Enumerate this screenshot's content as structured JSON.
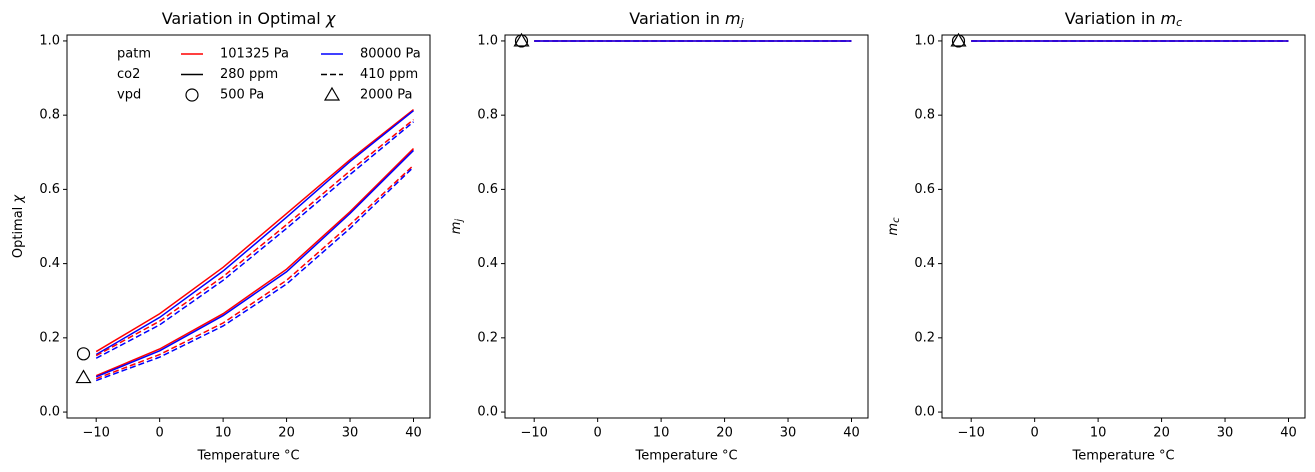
{
  "chart_data": [
    {
      "type": "line",
      "title": "Variation in Optimal",
      "title_symbol": "χ",
      "xlabel": "Temperature °C",
      "ylabel": "Optimal",
      "ylabel_symbol": "χ",
      "x": [
        -10,
        0,
        10,
        20,
        30,
        40
      ],
      "series": [
        {
          "color": "#ff0000",
          "dash": "solid",
          "values": [
            0.163,
            0.265,
            0.39,
            0.535,
            0.68,
            0.815
          ]
        },
        {
          "color": "#0000ff",
          "dash": "solid",
          "values": [
            0.155,
            0.255,
            0.38,
            0.525,
            0.675,
            0.812
          ]
        },
        {
          "color": "#ff0000",
          "dash": "dashed",
          "values": [
            0.152,
            0.245,
            0.365,
            0.505,
            0.65,
            0.788
          ]
        },
        {
          "color": "#0000ff",
          "dash": "dashed",
          "values": [
            0.145,
            0.235,
            0.355,
            0.495,
            0.64,
            0.782
          ]
        },
        {
          "color": "#ff0000",
          "dash": "solid",
          "values": [
            0.098,
            0.17,
            0.265,
            0.385,
            0.54,
            0.71
          ]
        },
        {
          "color": "#0000ff",
          "dash": "solid",
          "values": [
            0.095,
            0.165,
            0.26,
            0.378,
            0.535,
            0.705
          ]
        },
        {
          "color": "#ff0000",
          "dash": "dashed",
          "values": [
            0.09,
            0.155,
            0.24,
            0.355,
            0.505,
            0.665
          ]
        },
        {
          "color": "#0000ff",
          "dash": "dashed",
          "values": [
            0.085,
            0.148,
            0.232,
            0.345,
            0.495,
            0.66
          ]
        }
      ],
      "markers": [
        {
          "x": -12,
          "y": 0.157,
          "shape": "circle"
        },
        {
          "x": -12,
          "y": 0.093,
          "shape": "triangle"
        }
      ],
      "xlim": [
        -14.6,
        42.6
      ],
      "ylim": [
        -0.016,
        1.016
      ],
      "xticks": [
        {
          "value": -10,
          "label": "−10"
        },
        0,
        10,
        20,
        30,
        40
      ],
      "yticks": [
        {
          "value": 0,
          "label": "0.0"
        },
        {
          "value": 0.2,
          "label": "0.2"
        },
        {
          "value": 0.4,
          "label": "0.4"
        },
        {
          "value": 0.6,
          "label": "0.6"
        },
        {
          "value": 0.8,
          "label": "0.8"
        },
        {
          "value": 1,
          "label": "1.0"
        }
      ],
      "legend": [
        {
          "label": "patm",
          "entries": [
            {
              "label": "101325 Pa",
              "color": "#ff0000",
              "dash": "solid"
            },
            {
              "label": "80000 Pa",
              "color": "#0000ff",
              "dash": "solid"
            }
          ]
        },
        {
          "label": "co2",
          "entries": [
            {
              "label": "280 ppm",
              "color": "#000000",
              "dash": "solid"
            },
            {
              "label": "410 ppm",
              "color": "#000000",
              "dash": "dashed"
            }
          ]
        },
        {
          "label": "vpd",
          "entries": [
            {
              "label": "500 Pa",
              "marker": "circle"
            },
            {
              "label": "2000 Pa",
              "marker": "triangle"
            }
          ]
        }
      ]
    },
    {
      "type": "line",
      "title": "Variation in",
      "title_symbol": "m",
      "title_subscript": "j",
      "xlabel": "Temperature °C",
      "ylabel_symbol": "m",
      "ylabel_subscript": "j",
      "x": [
        -10,
        0,
        10,
        20,
        30,
        40
      ],
      "series": [
        {
          "color": "#ff0000",
          "dash": "solid",
          "values": [
            1,
            1,
            1,
            1,
            1,
            1
          ]
        },
        {
          "color": "#0000ff",
          "dash": "solid",
          "values": [
            1,
            1,
            1,
            1,
            1,
            1
          ]
        },
        {
          "color": "#ff0000",
          "dash": "dashed",
          "values": [
            1,
            1,
            1,
            1,
            1,
            1
          ]
        },
        {
          "color": "#0000ff",
          "dash": "dashed",
          "values": [
            1,
            1,
            1,
            1,
            1,
            1
          ]
        }
      ],
      "markers": [
        {
          "x": -12,
          "y": 1,
          "shape": "circle"
        },
        {
          "x": -12,
          "y": 1,
          "shape": "triangle"
        }
      ],
      "xlim": [
        -14.6,
        42.6
      ],
      "ylim": [
        -0.016,
        1.016
      ],
      "xticks": [
        {
          "value": -10,
          "label": "−10"
        },
        0,
        10,
        20,
        30,
        40
      ],
      "yticks": [
        {
          "value": 0,
          "label": "0.0"
        },
        {
          "value": 0.2,
          "label": "0.2"
        },
        {
          "value": 0.4,
          "label": "0.4"
        },
        {
          "value": 0.6,
          "label": "0.6"
        },
        {
          "value": 0.8,
          "label": "0.8"
        },
        {
          "value": 1,
          "label": "1.0"
        }
      ]
    },
    {
      "type": "line",
      "title": "Variation in",
      "title_symbol": "m",
      "title_subscript": "c",
      "xlabel": "Temperature °C",
      "ylabel_symbol": "m",
      "ylabel_subscript": "c",
      "x": [
        -10,
        0,
        10,
        20,
        30,
        40
      ],
      "series": [
        {
          "color": "#ff0000",
          "dash": "solid",
          "values": [
            1,
            1,
            1,
            1,
            1,
            1
          ]
        },
        {
          "color": "#0000ff",
          "dash": "solid",
          "values": [
            1,
            1,
            1,
            1,
            1,
            1
          ]
        },
        {
          "color": "#ff0000",
          "dash": "dashed",
          "values": [
            1,
            1,
            1,
            1,
            1,
            1
          ]
        },
        {
          "color": "#0000ff",
          "dash": "dashed",
          "values": [
            1,
            1,
            1,
            1,
            1,
            1
          ]
        }
      ],
      "markers": [
        {
          "x": -12,
          "y": 1,
          "shape": "circle"
        },
        {
          "x": -12,
          "y": 1,
          "shape": "triangle"
        }
      ],
      "xlim": [
        -14.6,
        42.6
      ],
      "ylim": [
        -0.016,
        1.016
      ],
      "xticks": [
        {
          "value": -10,
          "label": "−10"
        },
        0,
        10,
        20,
        30,
        40
      ],
      "yticks": [
        {
          "value": 0,
          "label": "0.0"
        },
        {
          "value": 0.2,
          "label": "0.2"
        },
        {
          "value": 0.4,
          "label": "0.4"
        },
        {
          "value": 0.6,
          "label": "0.6"
        },
        {
          "value": 0.8,
          "label": "0.8"
        },
        {
          "value": 1,
          "label": "1.0"
        }
      ]
    }
  ]
}
